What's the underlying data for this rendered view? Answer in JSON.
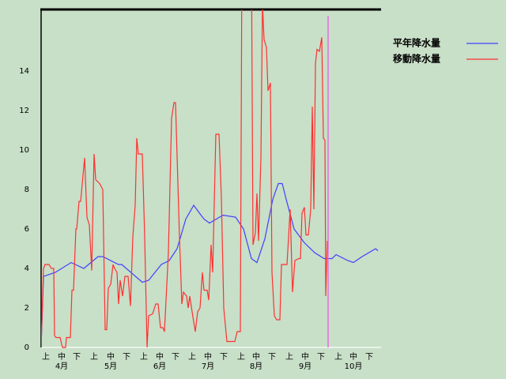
{
  "chart_data": {
    "type": "line",
    "xlim": [
      0,
      215
    ],
    "ylim": [
      0,
      17.12
    ],
    "yticks": [
      0,
      2,
      4,
      6,
      8,
      10,
      12,
      14
    ],
    "grid": false,
    "xticks": [
      {
        "value": 3,
        "label": "上"
      },
      {
        "value": 13,
        "label": "中"
      },
      {
        "value": 22.5,
        "label": "下"
      },
      {
        "value": 33.5,
        "label": "上"
      },
      {
        "value": 44,
        "label": "中"
      },
      {
        "value": 54,
        "label": "下"
      },
      {
        "value": 65,
        "label": "上"
      },
      {
        "value": 75,
        "label": "中"
      },
      {
        "value": 85,
        "label": "下"
      },
      {
        "value": 95.5,
        "label": "上"
      },
      {
        "value": 105.5,
        "label": "中"
      },
      {
        "value": 115.5,
        "label": "下"
      },
      {
        "value": 126.5,
        "label": "上"
      },
      {
        "value": 136,
        "label": "中"
      },
      {
        "value": 146,
        "label": "下"
      },
      {
        "value": 157,
        "label": "上"
      },
      {
        "value": 167,
        "label": "中"
      },
      {
        "value": 177,
        "label": "下"
      },
      {
        "value": 188,
        "label": "上"
      },
      {
        "value": 197.5,
        "label": "中"
      },
      {
        "value": 207.5,
        "label": "下"
      }
    ],
    "month_ticks": [
      {
        "value": 13,
        "label": "4月"
      },
      {
        "value": 44,
        "label": "5月"
      },
      {
        "value": 75,
        "label": "6月"
      },
      {
        "value": 105.5,
        "label": "7月"
      },
      {
        "value": 136,
        "label": "8月"
      },
      {
        "value": 167,
        "label": "9月"
      },
      {
        "value": 197.5,
        "label": "10月"
      }
    ],
    "marker_x": 181.5,
    "marker_color": "#e070e0",
    "series": [
      {
        "name": "平年降水量",
        "color": "#4040ff",
        "x": [
          0,
          1.5,
          9,
          19,
          27,
          36,
          39,
          49,
          51,
          64,
          68,
          76,
          81,
          86,
          91.5,
          96.5,
          103,
          106.5,
          115,
          123,
          128,
          133,
          136.5,
          141.5,
          146.5,
          150,
          152.5,
          155,
          160,
          166.5,
          173,
          179,
          184,
          186.5,
          194,
          197.5,
          203,
          211.5,
          213
        ],
        "values": [
          0,
          3.6,
          3.8,
          4.3,
          4.0,
          4.6,
          4.6,
          4.2,
          4.2,
          3.3,
          3.4,
          4.2,
          4.4,
          5.0,
          6.5,
          7.2,
          6.5,
          6.3,
          6.7,
          6.6,
          6.0,
          4.5,
          4.3,
          5.5,
          7.5,
          8.3,
          8.3,
          7.5,
          6.0,
          5.3,
          4.8,
          4.5,
          4.5,
          4.7,
          4.4,
          4.3,
          4.6,
          5.0,
          4.9
        ]
      },
      {
        "name": "移動降水量",
        "color": "#ff3030",
        "x": [
          0,
          1.5,
          2.5,
          5,
          6.5,
          8,
          8.5,
          9.5,
          12,
          13.5,
          15.5,
          16,
          18.5,
          19.5,
          20.5,
          22,
          22.5,
          24,
          25,
          27.5,
          29,
          30.5,
          32,
          33.5,
          34.5,
          37,
          39,
          40.5,
          41.5,
          42.5,
          44,
          45.5,
          46.5,
          48,
          49,
          50,
          51.5,
          53,
          55,
          56.5,
          58,
          59.5,
          60.5,
          61.5,
          64,
          65.5,
          67,
          68,
          70.5,
          72.5,
          74,
          75.5,
          77,
          78,
          80.5,
          82.5,
          84,
          85,
          87.5,
          89,
          90,
          92,
          93,
          94,
          95.5,
          97.5,
          99,
          100.5,
          102,
          103,
          105,
          106,
          107.5,
          108.5,
          110.5,
          112.5,
          114,
          115.5,
          117.5,
          119,
          122.5,
          124,
          126,
          127,
          133,
          134,
          135.5,
          136.5,
          137.5,
          139,
          140,
          141,
          142.5,
          143.5,
          145,
          146,
          147.5,
          149,
          151,
          152,
          155.5,
          157.5,
          159,
          160.5,
          163,
          164,
          165,
          166.5,
          167.5,
          169,
          170.5,
          171.5,
          172.5,
          173.5,
          174.5,
          176,
          177.5,
          178.5,
          179.5,
          180,
          181
        ],
        "values": [
          0,
          4.0,
          4.2,
          4.2,
          4.0,
          4.0,
          0.6,
          0.5,
          0.5,
          0,
          0,
          0.5,
          0.5,
          2.9,
          2.9,
          6.0,
          6.0,
          7.4,
          7.4,
          9.6,
          6.6,
          6.2,
          3.9,
          9.8,
          8.5,
          8.3,
          8.0,
          0.9,
          0.9,
          3.0,
          3.2,
          4.2,
          4.0,
          3.8,
          2.2,
          3.4,
          2.6,
          3.6,
          3.6,
          2.1,
          5.6,
          7.2,
          10.6,
          9.8,
          9.8,
          5.6,
          0,
          1.6,
          1.7,
          2.2,
          2.2,
          1.0,
          1.0,
          0.8,
          4.8,
          11.6,
          12.4,
          12.4,
          5.6,
          2.2,
          2.8,
          2.6,
          2.0,
          2.6,
          1.8,
          0.8,
          1.8,
          2.0,
          3.8,
          2.9,
          2.9,
          2.4,
          5.2,
          3.8,
          10.8,
          10.8,
          7.6,
          2.0,
          0.3,
          0.3,
          0.3,
          0.8,
          0.8,
          20,
          20,
          5.2,
          5.8,
          7.8,
          5.4,
          9.6,
          17.4,
          15.6,
          15.2,
          13.0,
          13.4,
          3.8,
          1.6,
          1.4,
          1.4,
          4.2,
          4.2,
          7.0,
          2.8,
          4.4,
          4.5,
          4.5,
          6.8,
          7.1,
          5.7,
          5.7,
          7.0,
          12.2,
          7.0,
          14.4,
          15.1,
          15.0,
          15.7,
          10.6,
          10.5,
          2.6,
          5.4
        ]
      }
    ]
  }
}
